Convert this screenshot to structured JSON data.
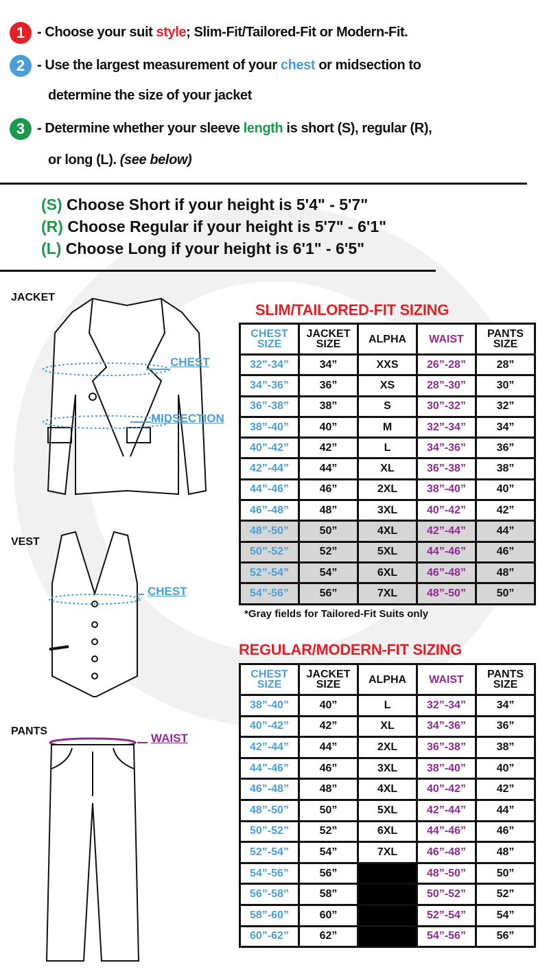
{
  "steps": [
    {
      "num": "1",
      "color": "#e41f26",
      "pre": "- Choose your suit ",
      "hl": "style",
      "post": "; Slim-Fit/Tailored-Fit or Modern-Fit."
    },
    {
      "num": "2",
      "color": "#4a9fd8",
      "pre": "- Use the largest measurement of your ",
      "hl": "chest",
      "post": " or midsection to",
      "line2": "determine the size of your jacket"
    },
    {
      "num": "3",
      "color": "#1a9a4a",
      "pre": "- Determine whether your sleeve ",
      "hl": "length",
      "post": " is short (S), regular (R),",
      "line2": "or long (L). ",
      "line2_italic": "(see below)"
    }
  ],
  "lengths": [
    {
      "code": "(S)",
      "text": " Choose Short if your height is 5'4\" - 5'7\""
    },
    {
      "code": "(R)",
      "text": " Choose Regular if your height is  5'7\" - 6'1\""
    },
    {
      "code": "(L)",
      "text": " Choose Long if your height is  6'1\" - 6'5\""
    }
  ],
  "garments": {
    "jacket": "JACKET",
    "vest": "VEST",
    "pants": "PANTS",
    "chest": "CHEST",
    "midsection": "MIDSECTION",
    "waist": "WAIST"
  },
  "headers": [
    "CHEST SIZE",
    "JACKET SIZE",
    "ALPHA",
    "WAIST",
    "PANTS SIZE"
  ],
  "slim": {
    "title": "SLIM/TAILORED-FIT SIZING",
    "note": "*Gray fields for Tailored-Fit Suits only",
    "gray_from_row": 8,
    "rows": [
      [
        "32”-34”",
        "34”",
        "XXS",
        "26”-28”",
        "28”"
      ],
      [
        "34”-36”",
        "36”",
        "XS",
        "28”-30”",
        "30”"
      ],
      [
        "36”-38”",
        "38”",
        "S",
        "30”-32”",
        "32”"
      ],
      [
        "38”-40”",
        "40”",
        "M",
        "32”-34”",
        "34”"
      ],
      [
        "40”-42”",
        "42”",
        "L",
        "34”-36”",
        "36”"
      ],
      [
        "42”-44”",
        "44”",
        "XL",
        "36”-38”",
        "38”"
      ],
      [
        "44”-46”",
        "46”",
        "2XL",
        "38”-40”",
        "40”"
      ],
      [
        "46”-48”",
        "48”",
        "3XL",
        "40”-42”",
        "42”"
      ],
      [
        "48”-50”",
        "50”",
        "4XL",
        "42”-44”",
        "44”"
      ],
      [
        "50”-52”",
        "52”",
        "5XL",
        "44”-46”",
        "46”"
      ],
      [
        "52”-54”",
        "54”",
        "6XL",
        "46”-48”",
        "48”"
      ],
      [
        "54”-56”",
        "56”",
        "7XL",
        "48”-50”",
        "50”"
      ]
    ]
  },
  "regular": {
    "title": "REGULAR/MODERN-FIT SIZING",
    "rows": [
      [
        "38”-40”",
        "40”",
        "L",
        "32”-34”",
        "34”"
      ],
      [
        "40”-42”",
        "42”",
        "XL",
        "34”-36”",
        "36”"
      ],
      [
        "42”-44”",
        "44”",
        "2XL",
        "36”-38”",
        "38”"
      ],
      [
        "44”-46”",
        "46”",
        "3XL",
        "38”-40”",
        "40”"
      ],
      [
        "46”-48”",
        "48”",
        "4XL",
        "40”-42”",
        "42”"
      ],
      [
        "48”-50”",
        "50”",
        "5XL",
        "42”-44”",
        "44”"
      ],
      [
        "50”-52”",
        "52”",
        "6XL",
        "44”-46”",
        "46”"
      ],
      [
        "52”-54”",
        "54”",
        "7XL",
        "46”-48”",
        "48”"
      ],
      [
        "54”-56”",
        "56”",
        "",
        "48”-50”",
        "50”"
      ],
      [
        "56”-58”",
        "58”",
        "",
        "50”-52”",
        "52”"
      ],
      [
        "58”-60”",
        "60”",
        "",
        "52”-54”",
        "54”"
      ],
      [
        "60”-62”",
        "62”",
        "",
        "54”-56”",
        "56”"
      ]
    ]
  }
}
